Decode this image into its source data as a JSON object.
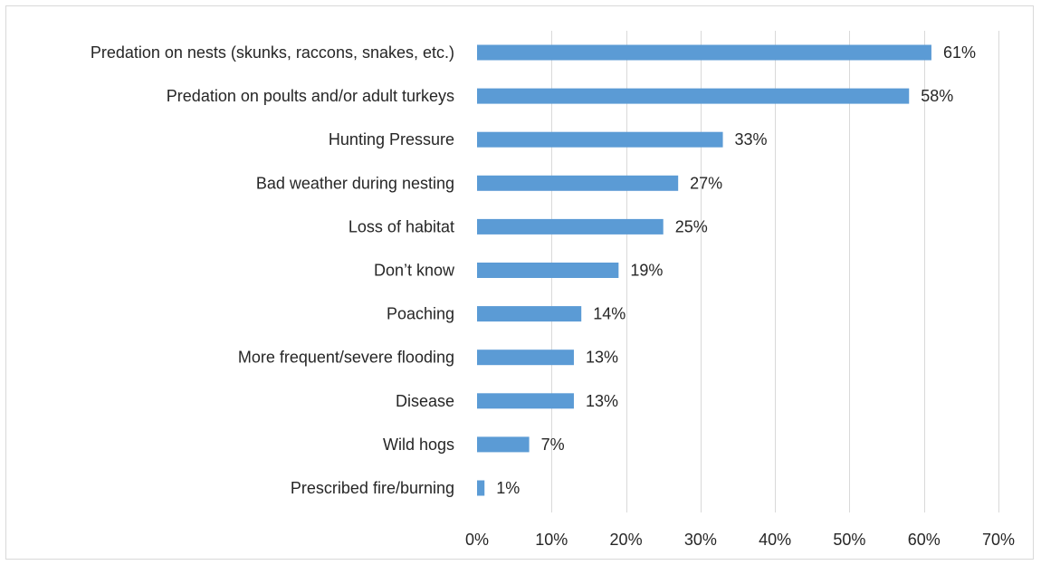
{
  "chart_data": {
    "type": "bar",
    "orientation": "horizontal",
    "title": "",
    "xlabel": "",
    "ylabel": "",
    "categories": [
      "Predation on nests (skunks, raccons, snakes, etc.)",
      "Predation on poults and/or adult turkeys",
      "Hunting Pressure",
      "Bad weather during nesting",
      "Loss of habitat",
      "Don’t know",
      "Poaching",
      "More frequent/severe flooding",
      "Disease",
      "Wild hogs",
      "Prescribed fire/burning"
    ],
    "values": [
      61,
      58,
      33,
      27,
      25,
      19,
      14,
      13,
      13,
      7,
      1
    ],
    "data_labels": [
      "61%",
      "58%",
      "33%",
      "27%",
      "25%",
      "19%",
      "14%",
      "13%",
      "13%",
      "7%",
      "1%"
    ],
    "xlim": [
      0,
      70
    ],
    "xticks": [
      0,
      10,
      20,
      30,
      40,
      50,
      60,
      70
    ],
    "xtick_labels": [
      "0%",
      "10%",
      "20%",
      "30%",
      "40%",
      "50%",
      "60%",
      "70%"
    ],
    "grid": "vertical",
    "legend": "none",
    "colors": {
      "bar": "#5b9bd5",
      "grid": "#d9d9d9",
      "text": "#262626",
      "border": "#d9d9d9"
    }
  }
}
